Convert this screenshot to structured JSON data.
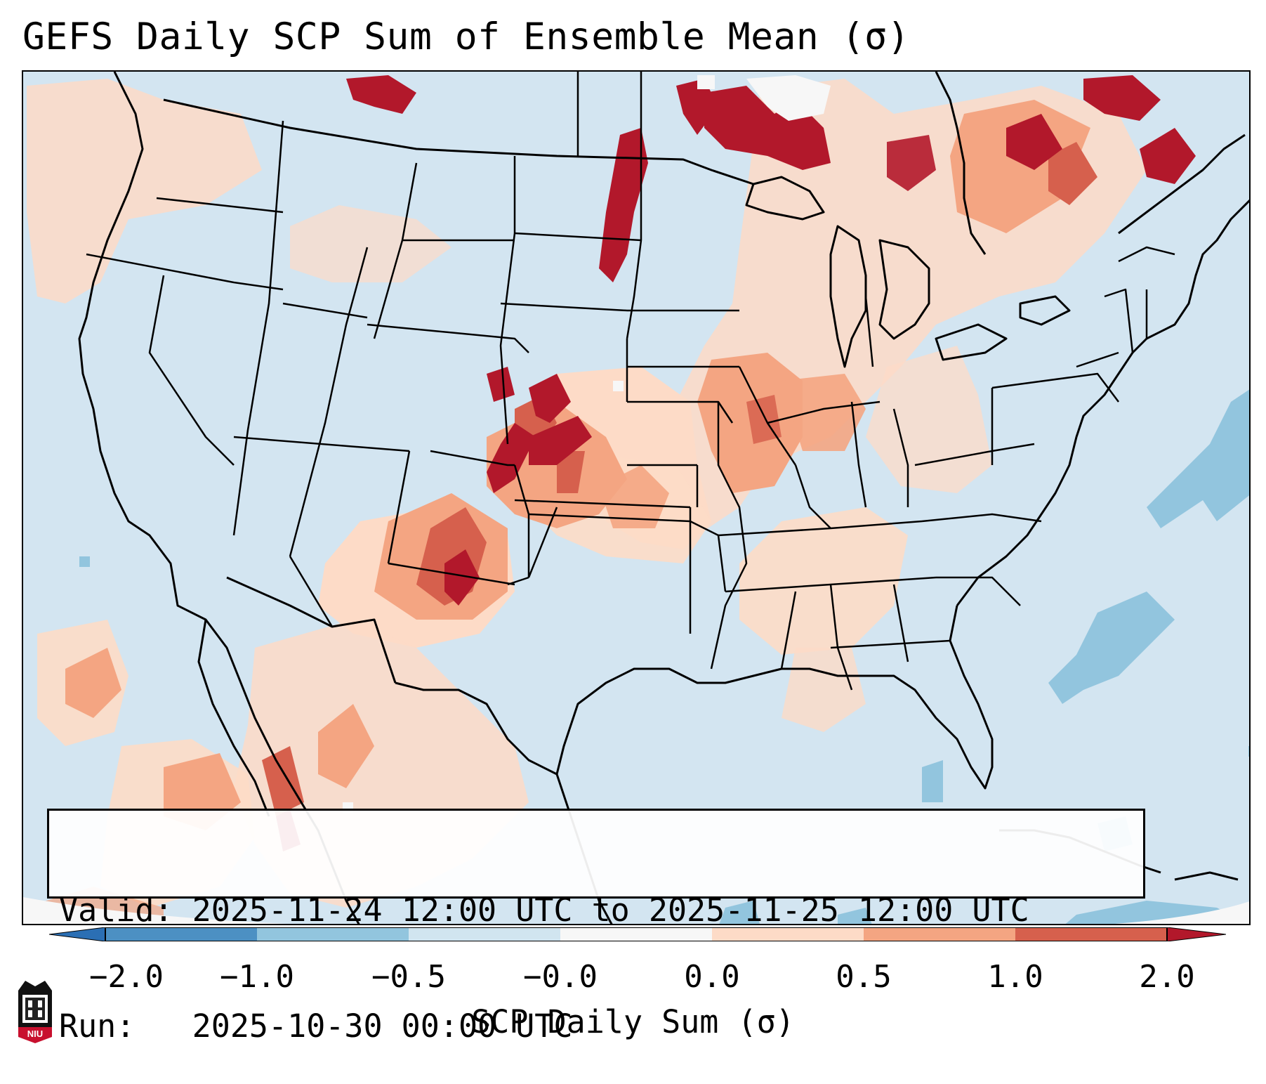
{
  "title": "GEFS Daily SCP Sum of Ensemble Mean (σ)",
  "info": {
    "valid": "Valid: 2025-11-24 12:00 UTC to 2025-11-25 12:00 UTC",
    "run": "Run:   2025-10-30 00:00 UTC"
  },
  "colorbar": {
    "label": "SCP Daily Sum (σ)",
    "ticks": [
      "−2.0",
      "−1.0",
      "−0.5",
      "−0.0",
      "0.0",
      "0.5",
      "1.0",
      "2.0"
    ],
    "bins": [
      {
        "range": "< -2.0",
        "color": "#2b6fb4"
      },
      {
        "range": "-2.0 to -1.0",
        "color": "#4c90c3"
      },
      {
        "range": "-1.0 to -0.5",
        "color": "#92c5de"
      },
      {
        "range": "-0.5 to -0.0",
        "color": "#d1e5f0"
      },
      {
        "range": "-0.0 to 0.0",
        "color": "#f7f7f7"
      },
      {
        "range": "0.0 to 0.5",
        "color": "#fddbc7"
      },
      {
        "range": "0.5 to 1.0",
        "color": "#f4a582"
      },
      {
        "range": "1.0 to 2.0",
        "color": "#d6604d"
      },
      {
        "range": "> 2.0",
        "color": "#b2182b"
      }
    ]
  },
  "colors": {
    "background_field": "#d1e5f0",
    "ocean_dryline_neg": "#92c5de",
    "weak_pos": "#fddbc7",
    "mod_pos": "#f4a582",
    "strong_pos": "#d6604d",
    "extreme_pos": "#b2182b"
  },
  "logo": {
    "text": "NIU"
  }
}
